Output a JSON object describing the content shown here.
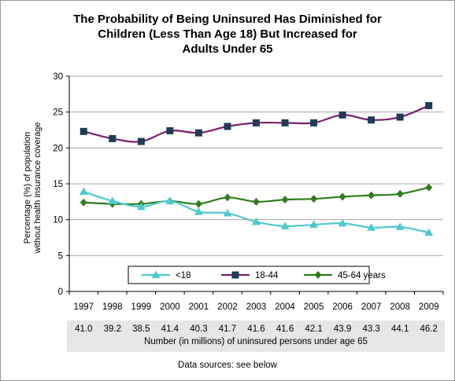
{
  "title_lines": [
    "The Probability of Being Uninsured Has Diminished for",
    "Children (Less Than Age 18) But Increased for",
    "Adults Under 65"
  ],
  "chart_data": {
    "type": "line",
    "ylabel_lines": [
      "Percentage (%) of population",
      "without health insurance coverage"
    ],
    "xlabel": "",
    "ylim": [
      0,
      30
    ],
    "yticks": [
      0,
      5,
      10,
      15,
      20,
      25,
      30
    ],
    "grid": "horizontal",
    "legend_placement": "bottom-center inside plot",
    "categories": [
      "1997",
      "1998",
      "1999",
      "2000",
      "2001",
      "2002",
      "2003",
      "2004",
      "2005",
      "2006",
      "2007",
      "2008",
      "2009"
    ],
    "series": [
      {
        "name": "<18",
        "color": "#4dc9cf",
        "marker": "triangle",
        "values": [
          13.9,
          12.6,
          11.8,
          12.6,
          11.1,
          10.9,
          9.7,
          9.1,
          9.3,
          9.5,
          8.9,
          9.0,
          8.2
        ]
      },
      {
        "name": "18-44",
        "color": "#7b1f6e",
        "marker": "square",
        "values": [
          22.3,
          21.3,
          20.9,
          22.4,
          22.1,
          23.0,
          23.5,
          23.5,
          23.5,
          24.6,
          23.9,
          24.3,
          25.9
        ]
      },
      {
        "name": "45-64 years",
        "color": "#2f7d1c",
        "marker": "diamond",
        "values": [
          12.4,
          12.2,
          12.2,
          12.6,
          12.2,
          13.1,
          12.5,
          12.8,
          12.9,
          13.2,
          13.4,
          13.6,
          14.5
        ]
      }
    ]
  },
  "uninsured_counts": {
    "values": [
      "41.0",
      "39.2",
      "38.5",
      "41.4",
      "40.3",
      "41.7",
      "41.6",
      "41.6",
      "42.1",
      "43.9",
      "43.3",
      "44.1",
      "46.2"
    ],
    "caption": "Number (in millions) of uninsured persons under age 65"
  },
  "source_note": "Data sources: see below"
}
